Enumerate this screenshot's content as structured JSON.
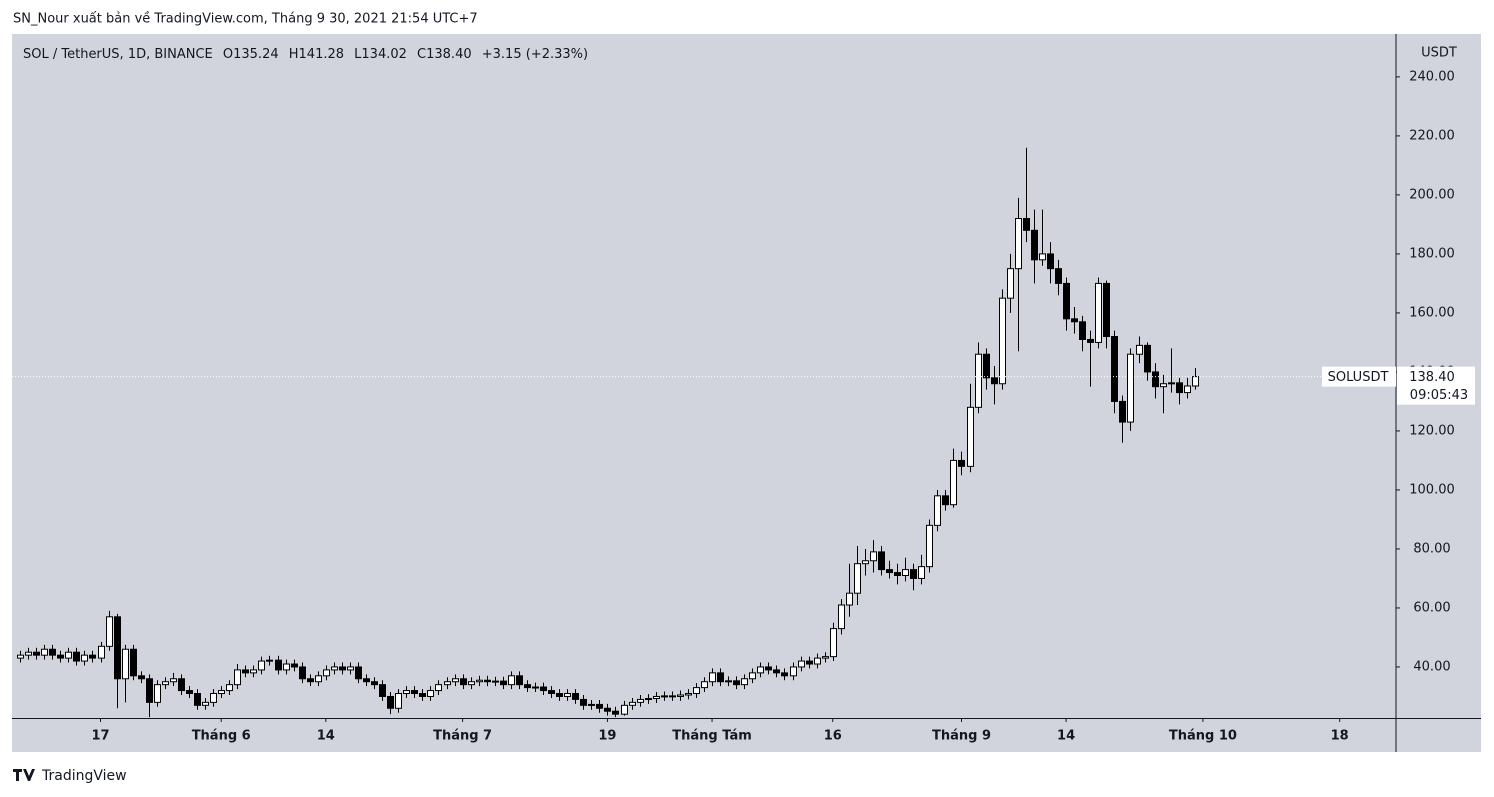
{
  "header": {
    "published": "SN_Nour xuất bản về TradingView.com, Tháng 9 30, 2021 21:54 UTC+7"
  },
  "chart_data": {
    "type": "candlestick",
    "symbol": "SOL / TetherUS, 1D, BINANCE",
    "legend": {
      "open": "O135.24",
      "high": "H141.28",
      "low": "L134.02",
      "close": "C138.40",
      "change": "+3.15 (+2.33%)"
    },
    "y_unit": "USDT",
    "x": [
      "2021-05-07",
      "2021-05-08",
      "2021-05-09",
      "2021-05-10",
      "2021-05-11",
      "2021-05-12",
      "2021-05-13",
      "2021-05-14",
      "2021-05-15",
      "2021-05-16",
      "2021-05-17",
      "2021-05-18",
      "2021-05-19",
      "2021-05-20",
      "2021-05-21",
      "2021-05-22",
      "2021-05-23",
      "2021-05-24",
      "2021-05-25",
      "2021-05-26",
      "2021-05-27",
      "2021-05-28",
      "2021-05-29",
      "2021-05-30",
      "2021-05-31",
      "2021-06-01",
      "2021-06-02",
      "2021-06-03",
      "2021-06-04",
      "2021-06-05",
      "2021-06-06",
      "2021-06-07",
      "2021-06-08",
      "2021-06-09",
      "2021-06-10",
      "2021-06-11",
      "2021-06-12",
      "2021-06-13",
      "2021-06-14",
      "2021-06-15",
      "2021-06-16",
      "2021-06-17",
      "2021-06-18",
      "2021-06-19",
      "2021-06-20",
      "2021-06-21",
      "2021-06-22",
      "2021-06-23",
      "2021-06-24",
      "2021-06-25",
      "2021-06-26",
      "2021-06-27",
      "2021-06-28",
      "2021-06-29",
      "2021-06-30",
      "2021-07-01",
      "2021-07-02",
      "2021-07-03",
      "2021-07-04",
      "2021-07-05",
      "2021-07-06",
      "2021-07-07",
      "2021-07-08",
      "2021-07-09",
      "2021-07-10",
      "2021-07-11",
      "2021-07-12",
      "2021-07-13",
      "2021-07-14",
      "2021-07-15",
      "2021-07-16",
      "2021-07-17",
      "2021-07-18",
      "2021-07-19",
      "2021-07-20",
      "2021-07-21",
      "2021-07-22",
      "2021-07-23",
      "2021-07-24",
      "2021-07-25",
      "2021-07-26",
      "2021-07-27",
      "2021-07-28",
      "2021-07-29",
      "2021-07-30",
      "2021-07-31",
      "2021-08-01",
      "2021-08-02",
      "2021-08-03",
      "2021-08-04",
      "2021-08-05",
      "2021-08-06",
      "2021-08-07",
      "2021-08-08",
      "2021-08-09",
      "2021-08-10",
      "2021-08-11",
      "2021-08-12",
      "2021-08-13",
      "2021-08-14",
      "2021-08-15",
      "2021-08-16",
      "2021-08-17",
      "2021-08-18",
      "2021-08-19",
      "2021-08-20",
      "2021-08-21",
      "2021-08-22",
      "2021-08-23",
      "2021-08-24",
      "2021-08-25",
      "2021-08-26",
      "2021-08-27",
      "2021-08-28",
      "2021-08-29",
      "2021-08-30",
      "2021-08-31",
      "2021-09-01",
      "2021-09-02",
      "2021-09-03",
      "2021-09-04",
      "2021-09-05",
      "2021-09-06",
      "2021-09-07",
      "2021-09-08",
      "2021-09-09",
      "2021-09-10",
      "2021-09-11",
      "2021-09-12",
      "2021-09-13",
      "2021-09-14",
      "2021-09-15",
      "2021-09-16",
      "2021-09-17",
      "2021-09-18",
      "2021-09-19",
      "2021-09-20",
      "2021-09-21",
      "2021-09-22",
      "2021-09-23",
      "2021-09-24",
      "2021-09-25",
      "2021-09-26",
      "2021-09-27",
      "2021-09-28",
      "2021-09-29",
      "2021-09-30"
    ],
    "open": [
      43,
      44,
      45,
      44,
      46,
      44,
      43,
      45,
      42,
      44,
      43,
      47,
      57,
      36,
      46,
      37,
      36,
      28,
      34,
      35,
      36,
      32,
      31,
      27,
      28,
      31,
      32,
      34,
      39,
      38,
      39,
      42,
      42.3,
      39,
      41,
      40,
      36,
      35,
      37,
      39,
      40,
      39,
      40,
      36,
      35,
      34,
      30,
      26,
      31,
      32,
      31,
      30,
      32,
      34,
      35,
      36,
      34,
      35,
      35.5,
      35,
      35.2,
      34,
      37,
      34,
      33,
      33.2,
      32,
      31,
      30,
      31,
      29,
      27,
      27.3,
      26,
      25,
      24,
      27,
      28,
      29,
      29.3,
      30,
      30.2,
      30,
      30.5,
      31,
      33,
      35,
      38,
      35,
      35.3,
      34,
      36,
      38,
      40,
      39,
      38,
      37,
      40,
      42,
      41,
      43,
      43.5,
      53,
      61,
      65,
      75,
      76,
      79,
      73,
      72,
      71,
      73,
      70,
      74,
      88,
      98,
      95,
      110,
      108,
      128,
      146,
      138,
      136,
      165,
      175,
      192,
      188,
      178,
      180,
      175,
      170,
      158,
      157,
      151,
      150,
      170,
      152,
      130,
      123,
      146,
      149,
      140,
      135,
      136,
      136.3,
      133,
      135.24
    ],
    "high": [
      45.5,
      46.5,
      46.5,
      47.5,
      47.5,
      45.5,
      46.5,
      46.5,
      45.5,
      45.5,
      48.5,
      59,
      58,
      47.5,
      47.5,
      38.5,
      37.5,
      35.5,
      36.5,
      38,
      37.5,
      33.5,
      32.5,
      29.5,
      32.5,
      33.5,
      35.5,
      41,
      40.5,
      40.5,
      43.5,
      43.8,
      43.8,
      42.5,
      42.5,
      41.5,
      37.5,
      38.5,
      40.5,
      41.5,
      41.5,
      41.5,
      41.5,
      37.5,
      36.5,
      35.5,
      31.5,
      32.5,
      33.5,
      33.5,
      32.5,
      33.5,
      35.5,
      36.5,
      37.5,
      37.5,
      36.5,
      37,
      37,
      36.7,
      36.7,
      38.5,
      38.5,
      35.5,
      34.7,
      34.7,
      33.5,
      32.5,
      32.5,
      32.5,
      30.5,
      28.8,
      28.8,
      27.5,
      26.5,
      28.5,
      29.5,
      30.5,
      30.8,
      31.5,
      31.7,
      31.7,
      32,
      32.5,
      34.5,
      36.5,
      39.5,
      39.5,
      36.8,
      36.8,
      37.5,
      39.5,
      41.5,
      41.5,
      40.5,
      39.5,
      41.5,
      43.5,
      43.5,
      44.5,
      45,
      55,
      63,
      75,
      81,
      80,
      83,
      81,
      76,
      75,
      77,
      75,
      78,
      90,
      100,
      100,
      114,
      113,
      136,
      150,
      148,
      142,
      168,
      180,
      199,
      216,
      195,
      195,
      184,
      178,
      172,
      162,
      159,
      154,
      172,
      171,
      154,
      132,
      148,
      152,
      150,
      143,
      139,
      148,
      138,
      138,
      141.28
    ],
    "low": [
      41.5,
      42.5,
      42.5,
      42.5,
      42.5,
      41.5,
      41.5,
      40.5,
      40.5,
      41.5,
      41.5,
      45.5,
      26,
      28,
      35.5,
      34.5,
      23,
      26.5,
      32.5,
      33.5,
      30.5,
      29.5,
      25.5,
      25.5,
      26.5,
      29.5,
      30.5,
      32.5,
      36.5,
      36.5,
      37.5,
      40.5,
      37.5,
      37.5,
      38.5,
      34.5,
      33.5,
      33.5,
      35.5,
      37.5,
      37.5,
      37.5,
      34.5,
      33.5,
      32.5,
      28.5,
      24,
      24.5,
      29.5,
      29.5,
      28.5,
      28.5,
      30.5,
      32.5,
      33.5,
      32.5,
      32.5,
      33.5,
      33.5,
      33.5,
      32.5,
      32.5,
      32.5,
      31.5,
      31.5,
      30.5,
      29.5,
      28.5,
      28.5,
      27.5,
      25.5,
      25.5,
      24.5,
      23.5,
      23,
      23.5,
      25.5,
      26.5,
      27.5,
      27.8,
      28.5,
      28.5,
      28.5,
      29,
      29.5,
      31.5,
      33.5,
      33.5,
      33.5,
      32.5,
      32.5,
      34.5,
      36.5,
      37.5,
      36.5,
      35.5,
      35.5,
      38.5,
      39.5,
      39.5,
      41.5,
      42,
      51,
      57,
      61,
      71,
      72,
      71,
      70,
      68,
      69,
      66,
      68,
      72,
      86,
      93,
      94,
      105,
      106,
      126,
      134,
      129,
      134,
      160,
      147,
      184,
      170,
      176,
      170,
      166,
      154,
      153,
      147,
      135,
      148,
      148,
      126,
      116,
      120,
      143,
      137,
      131,
      126,
      133,
      129,
      131,
      134.02
    ],
    "close": [
      44,
      45,
      44,
      46,
      44,
      43,
      45,
      42,
      44,
      43,
      47,
      57,
      36,
      46,
      37,
      36,
      28,
      34,
      35,
      36,
      32,
      31,
      27,
      28,
      31,
      32,
      34,
      39,
      38,
      39,
      42,
      42.3,
      39,
      41,
      40,
      36,
      35,
      37,
      39,
      40,
      39,
      40,
      36,
      35,
      34,
      30,
      26,
      31,
      32,
      31,
      30,
      32,
      34,
      35,
      36,
      34,
      35,
      35.5,
      35,
      35.2,
      34,
      37,
      34,
      33,
      33.2,
      32,
      31,
      30,
      31,
      29,
      27,
      27.3,
      26,
      25,
      24,
      27,
      28,
      29,
      29.3,
      30,
      30.2,
      30,
      30.5,
      31,
      33,
      35,
      38,
      35,
      35.3,
      34,
      36,
      38,
      40,
      39,
      38,
      37,
      40,
      42,
      41,
      43,
      43.5,
      53,
      61,
      65,
      75,
      76,
      79,
      73,
      72,
      71,
      73,
      70,
      74,
      88,
      98,
      95,
      110,
      108,
      128,
      146,
      138,
      136,
      165,
      175,
      192,
      188,
      178,
      180,
      175,
      170,
      158,
      157,
      151,
      150,
      170,
      152,
      130,
      123,
      146,
      149,
      140,
      135,
      136,
      136.3,
      133,
      135.24,
      138.4
    ],
    "xlim": [
      "2021-05-06",
      "2021-10-25"
    ],
    "xticks": [
      {
        "value": "2021-05-17",
        "label": "17"
      },
      {
        "value": "2021-06-01",
        "label": "Tháng 6"
      },
      {
        "value": "2021-06-14",
        "label": "14"
      },
      {
        "value": "2021-07-01",
        "label": "Tháng 7"
      },
      {
        "value": "2021-07-19",
        "label": "19"
      },
      {
        "value": "2021-08-01",
        "label": "Tháng Tám"
      },
      {
        "value": "2021-08-16",
        "label": "16"
      },
      {
        "value": "2021-09-01",
        "label": "Tháng 9"
      },
      {
        "value": "2021-09-14",
        "label": "14"
      },
      {
        "value": "2021-10-01",
        "label": "Tháng 10"
      },
      {
        "value": "2021-10-18",
        "label": "18"
      }
    ],
    "ylim": [
      22.7,
      254.2
    ],
    "yticks": [
      {
        "value": 40,
        "label": "40.00"
      },
      {
        "value": 60,
        "label": "60.00"
      },
      {
        "value": 80,
        "label": "80.00"
      },
      {
        "value": 100,
        "label": "100.00"
      },
      {
        "value": 120,
        "label": "120.00"
      },
      {
        "value": 140,
        "label": "140.00"
      },
      {
        "value": 160,
        "label": "160.00"
      },
      {
        "value": 180,
        "label": "180.00"
      },
      {
        "value": 200,
        "label": "200.00"
      },
      {
        "value": 220,
        "label": "220.00"
      },
      {
        "value": 240,
        "label": "240.00"
      }
    ],
    "up_color": "#ffffff",
    "down_color": "#000000",
    "wick_color": "#000000",
    "background": "#d1d4dc",
    "last_price": {
      "symbol": "SOLUSDT",
      "price": "138.40",
      "countdown": "09:05:43"
    }
  },
  "footer": {
    "brand": "TradingView"
  }
}
